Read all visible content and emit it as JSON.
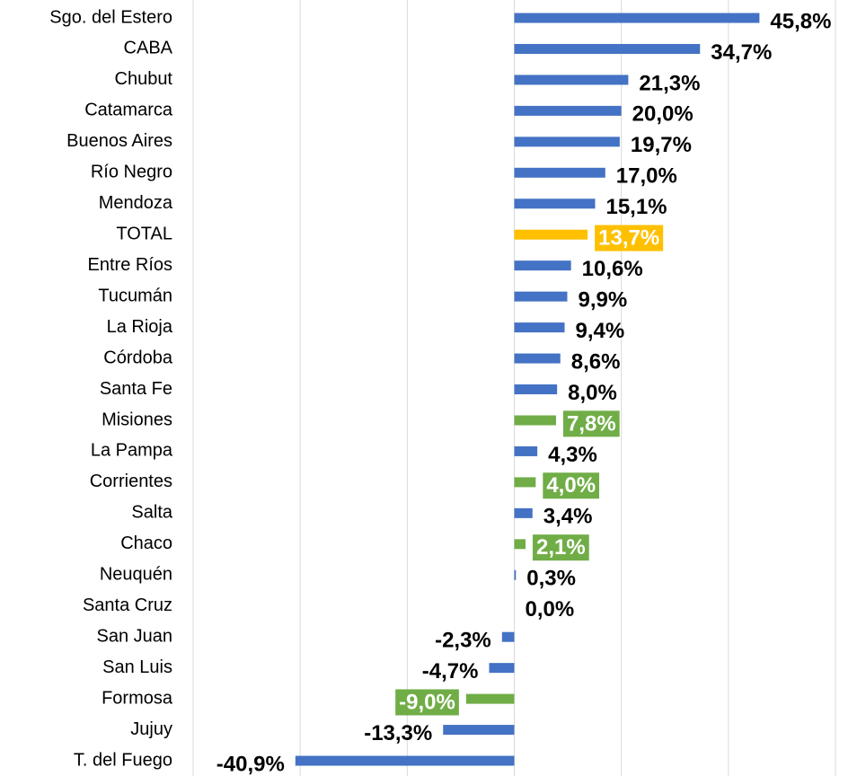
{
  "chart_data": {
    "type": "bar",
    "orientation": "horizontal",
    "categories": [
      "Sgo. del Estero",
      "CABA",
      "Chubut",
      "Catamarca",
      "Buenos Aires",
      "Río Negro",
      "Mendoza",
      "TOTAL",
      "Entre Ríos",
      "Tucumán",
      "La Rioja",
      "Córdoba",
      "Santa Fe",
      "Misiones",
      "La Pampa",
      "Corrientes",
      "Salta",
      "Chaco",
      "Neuquén",
      "Santa Cruz",
      "San Juan",
      "San Luis",
      "Formosa",
      "Jujuy",
      "T. del Fuego"
    ],
    "values": [
      45.8,
      34.7,
      21.3,
      20.0,
      19.7,
      17.0,
      15.1,
      13.7,
      10.6,
      9.9,
      9.4,
      8.6,
      8.0,
      7.8,
      4.3,
      4.0,
      3.4,
      2.1,
      0.3,
      0.0,
      -2.3,
      -4.7,
      -9.0,
      -13.3,
      -40.9
    ],
    "value_labels": [
      "45,8%",
      "34,7%",
      "21,3%",
      "20,0%",
      "19,7%",
      "17,0%",
      "15,1%",
      "13,7%",
      "10,6%",
      "9,9%",
      "9,4%",
      "8,6%",
      "8,0%",
      "7,8%",
      "4,3%",
      "4,0%",
      "3,4%",
      "2,1%",
      "0,3%",
      "0,0%",
      "-2,3%",
      "-4,7%",
      "-9,0%",
      "-13,3%",
      "-40,9%"
    ],
    "color": "#4472c4",
    "colors": [
      "#4472c4",
      "#4472c4",
      "#4472c4",
      "#4472c4",
      "#4472c4",
      "#4472c4",
      "#4472c4",
      "#ffc000",
      "#4472c4",
      "#4472c4",
      "#4472c4",
      "#4472c4",
      "#4472c4",
      "#70ad47",
      "#4472c4",
      "#70ad47",
      "#4472c4",
      "#70ad47",
      "#4472c4",
      "#4472c4",
      "#4472c4",
      "#4472c4",
      "#70ad47",
      "#4472c4",
      "#4472c4"
    ],
    "xlim": [
      -60,
      60
    ],
    "xticks": [
      -60,
      -40,
      -20,
      0,
      20,
      40,
      60
    ],
    "grid": true
  }
}
